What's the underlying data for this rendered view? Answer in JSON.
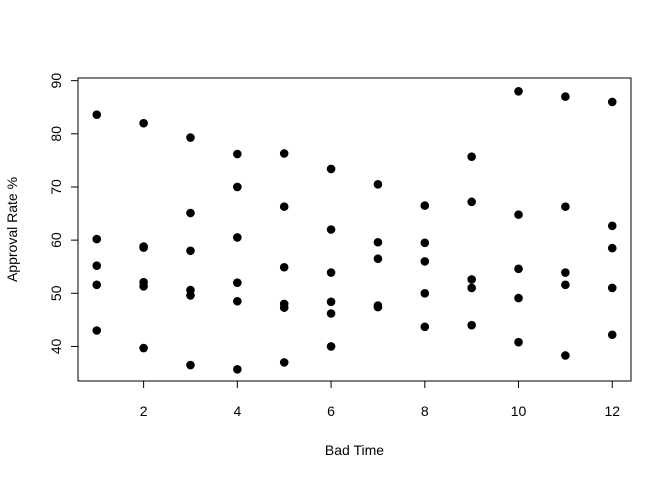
{
  "chart_data": {
    "type": "scatter",
    "title": "",
    "xlabel": "Bad Time",
    "ylabel": "Approval Rate %",
    "xlim": [
      0.6,
      12.4
    ],
    "ylim": [
      33.5,
      90.5
    ],
    "xticks": [
      2,
      4,
      6,
      8,
      10,
      12
    ],
    "yticks": [
      40,
      50,
      60,
      70,
      80,
      90
    ],
    "grid": false,
    "legend": "none",
    "point_color": "#000000",
    "series": [
      {
        "x": [
          1,
          1,
          1,
          1,
          1,
          2,
          2,
          2,
          2,
          2,
          2,
          3,
          3,
          3,
          3,
          3,
          3,
          4,
          4,
          4,
          4,
          4,
          4,
          5,
          5,
          5,
          5,
          5,
          5,
          6,
          6,
          6,
          6,
          6,
          6,
          7,
          7,
          7,
          7,
          7,
          8,
          8,
          8,
          8,
          8,
          9,
          9,
          9,
          9,
          9,
          10,
          10,
          10,
          10,
          10,
          11,
          11,
          11,
          11,
          11,
          12,
          12,
          12,
          12,
          12
        ],
        "y": [
          83.6,
          60.2,
          55.2,
          51.6,
          43.0,
          82.0,
          58.8,
          58.6,
          52.1,
          51.3,
          39.7,
          79.3,
          65.1,
          58.0,
          50.6,
          49.6,
          36.5,
          76.2,
          70.0,
          60.5,
          52.0,
          48.5,
          35.7,
          76.3,
          66.3,
          54.9,
          48.0,
          47.3,
          37.0,
          73.4,
          62.0,
          53.9,
          48.4,
          46.2,
          40.0,
          70.5,
          59.6,
          56.5,
          47.7,
          47.4,
          66.5,
          59.5,
          56.0,
          50.0,
          43.7,
          75.7,
          67.2,
          52.6,
          51.0,
          44.0,
          88.0,
          64.8,
          54.6,
          49.1,
          40.8,
          87.0,
          66.3,
          53.9,
          51.6,
          38.3,
          86.0,
          62.7,
          58.5,
          51.0,
          42.2
        ]
      }
    ]
  }
}
